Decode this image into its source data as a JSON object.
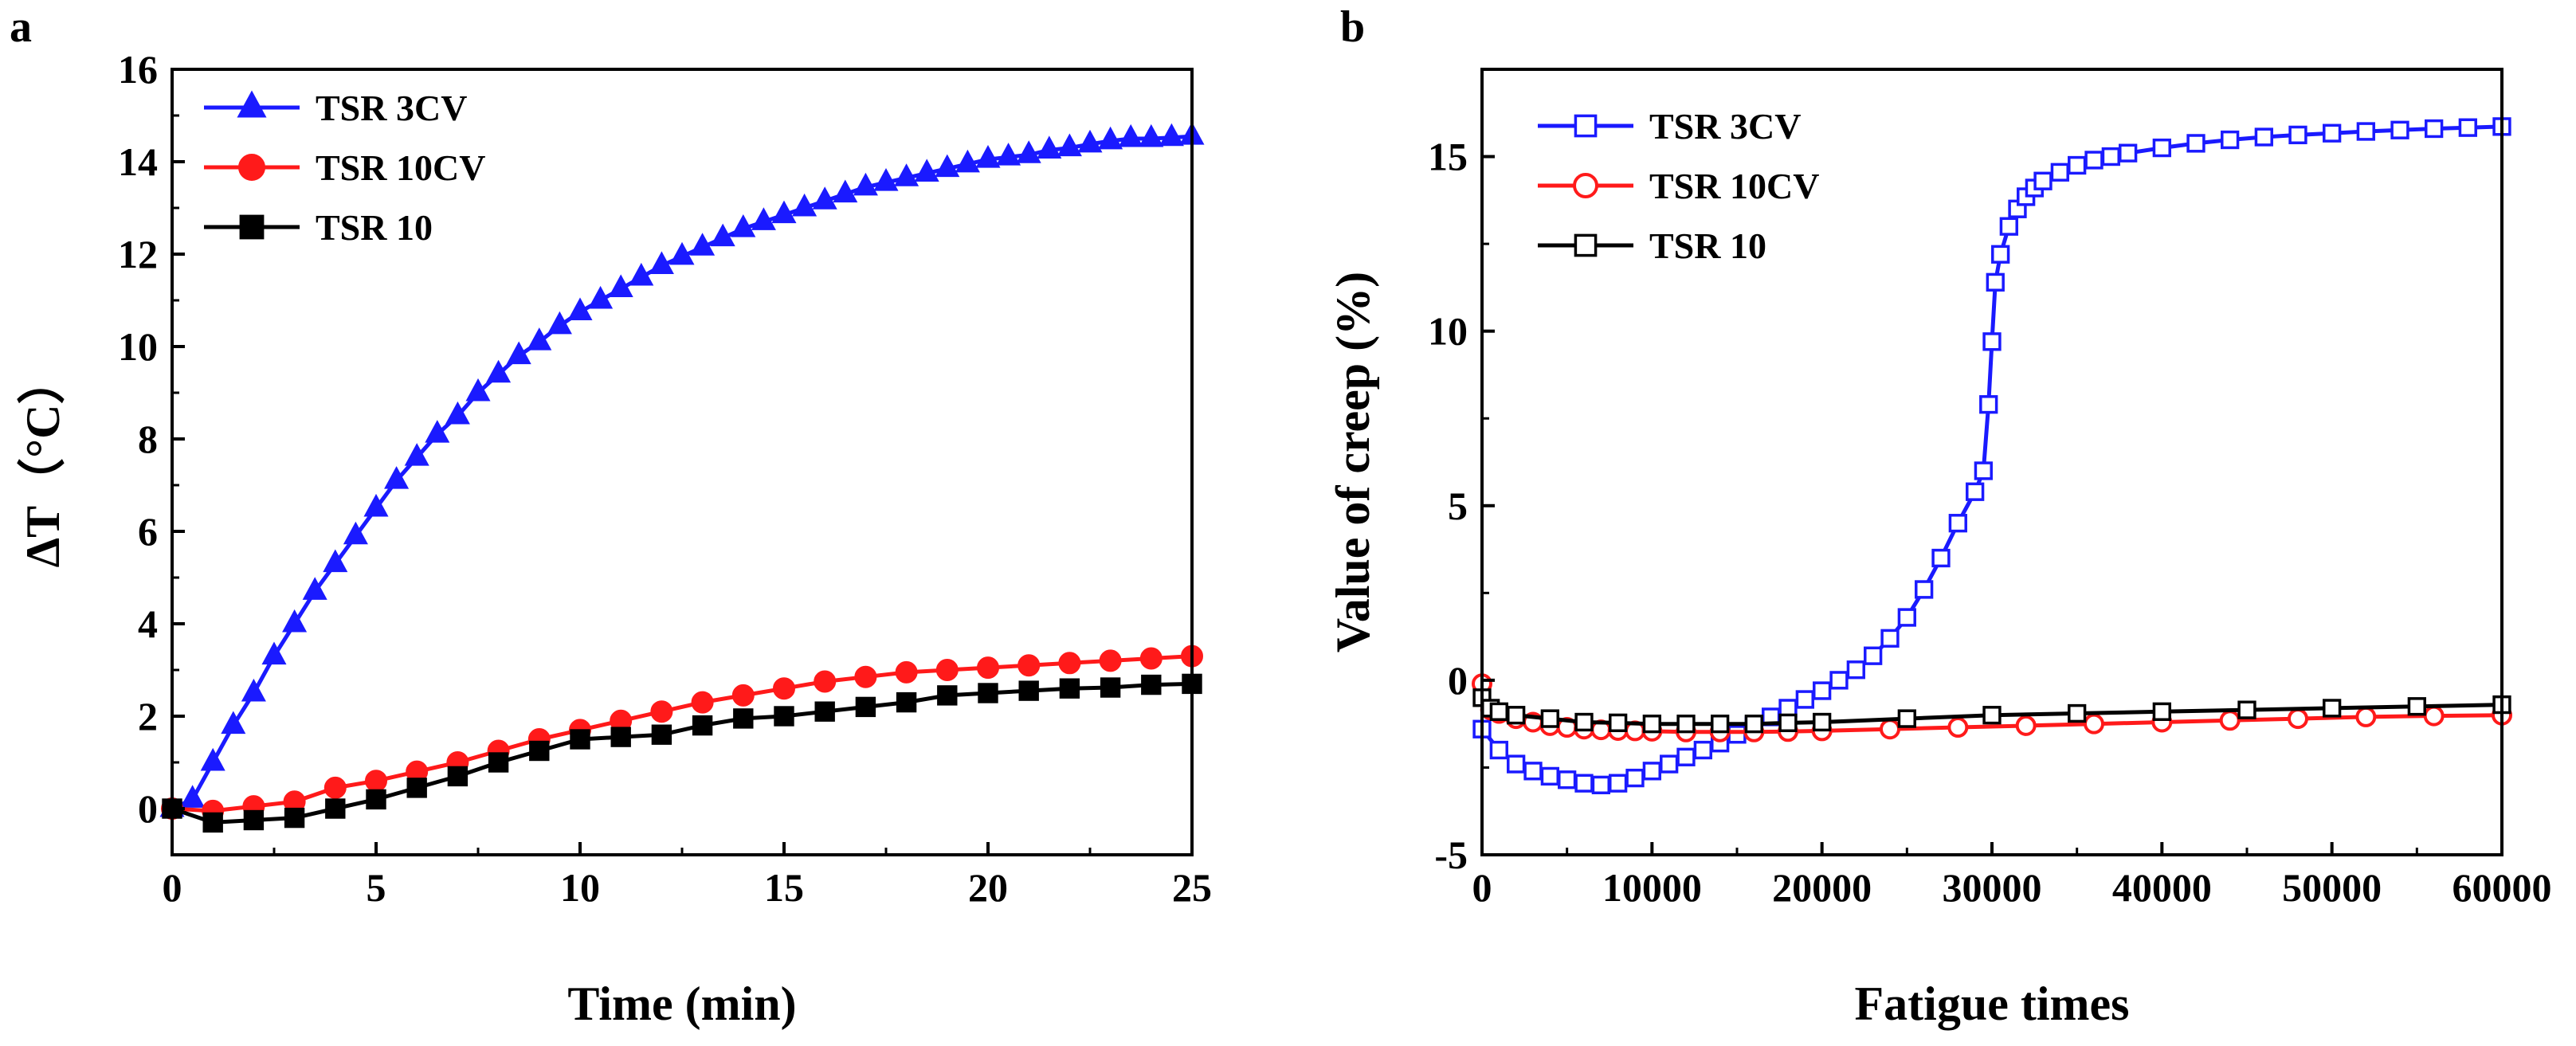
{
  "chart_data": [
    {
      "panel_label": "a",
      "type": "line",
      "xlabel": "Time (min)",
      "ylabel": "ΔT（°C）",
      "xlim": [
        0,
        25
      ],
      "ylim": [
        -1,
        16
      ],
      "xticks": [
        0,
        5,
        10,
        15,
        20,
        25
      ],
      "yticks": [
        0,
        2,
        4,
        6,
        8,
        10,
        12,
        14,
        16
      ],
      "legend_position": "top-left",
      "series": [
        {
          "name": "TSR 3CV",
          "color": "#1a1aff",
          "marker": "triangle-filled",
          "x": [
            0,
            0.5,
            1,
            1.5,
            2,
            2.5,
            3,
            3.5,
            4,
            4.5,
            5,
            5.5,
            6,
            6.5,
            7,
            7.5,
            8,
            8.5,
            9,
            9.5,
            10,
            10.5,
            11,
            11.5,
            12,
            12.5,
            13,
            13.5,
            14,
            14.5,
            15,
            15.5,
            16,
            16.5,
            17,
            17.5,
            18,
            18.5,
            19,
            19.5,
            20,
            20.5,
            21,
            21.5,
            22,
            22.5,
            23,
            23.5,
            24,
            24.5,
            25
          ],
          "y": [
            0,
            0.2,
            1.0,
            1.8,
            2.5,
            3.3,
            4.0,
            4.7,
            5.3,
            5.9,
            6.5,
            7.1,
            7.6,
            8.1,
            8.5,
            9.0,
            9.4,
            9.8,
            10.1,
            10.45,
            10.75,
            11.0,
            11.25,
            11.5,
            11.75,
            11.95,
            12.15,
            12.35,
            12.55,
            12.7,
            12.85,
            13.0,
            13.15,
            13.3,
            13.45,
            13.55,
            13.65,
            13.75,
            13.85,
            13.95,
            14.05,
            14.1,
            14.15,
            14.25,
            14.3,
            14.38,
            14.45,
            14.5,
            14.5,
            14.52,
            14.55
          ]
        },
        {
          "name": "TSR 10CV",
          "color": "#ff1a1a",
          "marker": "circle-filled",
          "x": [
            0,
            1,
            2,
            3,
            4,
            5,
            6,
            7,
            8,
            9,
            10,
            11,
            12,
            13,
            14,
            15,
            16,
            17,
            18,
            19,
            20,
            21,
            22,
            23,
            24,
            25
          ],
          "y": [
            0,
            -0.05,
            0.05,
            0.15,
            0.45,
            0.6,
            0.8,
            1.0,
            1.25,
            1.5,
            1.7,
            1.9,
            2.1,
            2.3,
            2.45,
            2.6,
            2.75,
            2.85,
            2.95,
            3.0,
            3.05,
            3.1,
            3.15,
            3.2,
            3.25,
            3.3
          ]
        },
        {
          "name": "TSR 10",
          "color": "#000000",
          "marker": "square-filled",
          "x": [
            0,
            1,
            2,
            3,
            4,
            5,
            6,
            7,
            8,
            9,
            10,
            11,
            12,
            13,
            14,
            15,
            16,
            17,
            18,
            19,
            20,
            21,
            22,
            23,
            24,
            25
          ],
          "y": [
            0,
            -0.3,
            -0.25,
            -0.2,
            0.0,
            0.2,
            0.45,
            0.7,
            1.0,
            1.25,
            1.5,
            1.55,
            1.6,
            1.8,
            1.95,
            2.0,
            2.1,
            2.2,
            2.3,
            2.45,
            2.5,
            2.55,
            2.6,
            2.62,
            2.68,
            2.7
          ]
        }
      ]
    },
    {
      "panel_label": "b",
      "type": "line",
      "xlabel": "Fatigue times",
      "ylabel": "Value of creep (%)",
      "xlim": [
        0,
        60000
      ],
      "ylim": [
        -5,
        17.5
      ],
      "xticks": [
        0,
        10000,
        20000,
        30000,
        40000,
        50000,
        60000
      ],
      "yticks": [
        -5,
        0,
        5,
        10,
        15
      ],
      "legend_position": "top-left",
      "series": [
        {
          "name": "TSR 3CV",
          "color": "#1a1aff",
          "marker": "square-open",
          "x": [
            0,
            1000,
            2000,
            3000,
            4000,
            5000,
            6000,
            7000,
            8000,
            9000,
            10000,
            11000,
            12000,
            13000,
            14000,
            15000,
            16000,
            17000,
            18000,
            19000,
            20000,
            21000,
            22000,
            23000,
            24000,
            25000,
            26000,
            27000,
            28000,
            29000,
            29500,
            29800,
            30000,
            30200,
            30500,
            31000,
            31500,
            32000,
            32500,
            33000,
            34000,
            35000,
            36000,
            37000,
            38000,
            40000,
            42000,
            44000,
            46000,
            48000,
            50000,
            52000,
            54000,
            56000,
            58000,
            60000
          ],
          "y": [
            -1.4,
            -2.0,
            -2.4,
            -2.6,
            -2.75,
            -2.85,
            -2.95,
            -3.0,
            -2.95,
            -2.8,
            -2.6,
            -2.4,
            -2.2,
            -2.0,
            -1.8,
            -1.55,
            -1.3,
            -1.05,
            -0.8,
            -0.55,
            -0.3,
            0.0,
            0.3,
            0.7,
            1.2,
            1.8,
            2.6,
            3.5,
            4.5,
            5.4,
            6.0,
            7.9,
            9.7,
            11.4,
            12.2,
            13.0,
            13.5,
            13.85,
            14.1,
            14.3,
            14.55,
            14.75,
            14.9,
            15.0,
            15.1,
            15.25,
            15.38,
            15.48,
            15.56,
            15.62,
            15.67,
            15.72,
            15.76,
            15.8,
            15.83,
            15.86
          ]
        },
        {
          "name": "TSR 10CV",
          "color": "#ff1a1a",
          "marker": "circle-open",
          "x": [
            0,
            500,
            1000,
            2000,
            3000,
            4000,
            5000,
            6000,
            7000,
            8000,
            9000,
            10000,
            12000,
            14000,
            16000,
            18000,
            20000,
            24000,
            28000,
            32000,
            36000,
            40000,
            44000,
            48000,
            52000,
            56000,
            60000
          ],
          "y": [
            -0.1,
            -0.85,
            -0.95,
            -1.1,
            -1.2,
            -1.3,
            -1.35,
            -1.4,
            -1.42,
            -1.44,
            -1.45,
            -1.46,
            -1.48,
            -1.48,
            -1.48,
            -1.47,
            -1.45,
            -1.4,
            -1.35,
            -1.3,
            -1.25,
            -1.2,
            -1.15,
            -1.1,
            -1.05,
            -1.02,
            -1.0
          ]
        },
        {
          "name": "TSR 10",
          "color": "#000000",
          "marker": "square-open",
          "x": [
            0,
            500,
            1000,
            2000,
            4000,
            6000,
            8000,
            10000,
            12000,
            14000,
            16000,
            18000,
            20000,
            25000,
            30000,
            35000,
            40000,
            45000,
            50000,
            55000,
            60000
          ],
          "y": [
            -0.5,
            -0.8,
            -0.9,
            -1.0,
            -1.1,
            -1.2,
            -1.22,
            -1.25,
            -1.25,
            -1.25,
            -1.25,
            -1.22,
            -1.2,
            -1.1,
            -1.0,
            -0.95,
            -0.9,
            -0.85,
            -0.8,
            -0.75,
            -0.7
          ]
        }
      ]
    }
  ]
}
